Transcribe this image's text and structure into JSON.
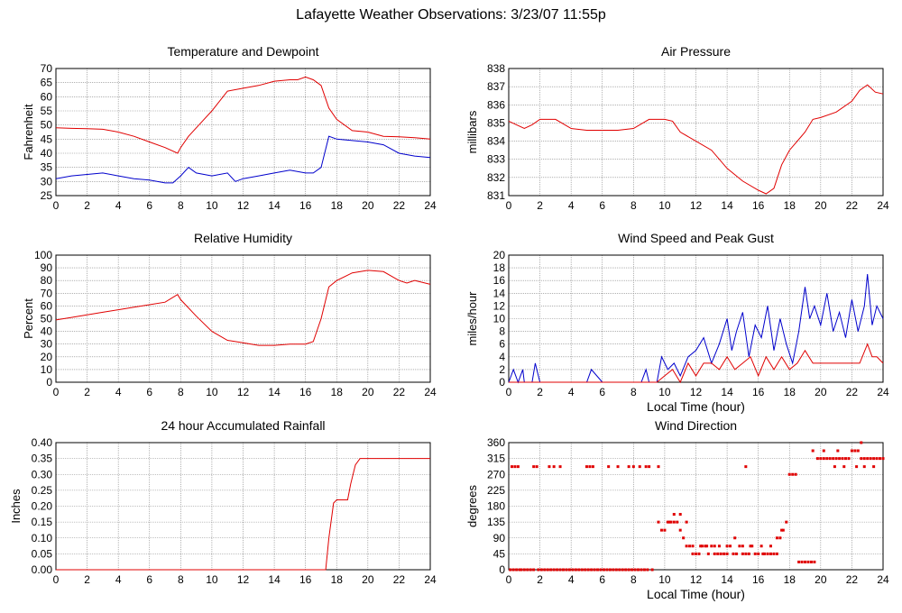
{
  "page": {
    "title": "Lafayette Weather Observations: 3/23/07 11:55p"
  },
  "colors": {
    "red": "#e00000",
    "blue": "#0000cc",
    "grid": "#808080"
  },
  "chart_data": [
    {
      "id": "temp",
      "type": "line",
      "title": "Temperature and Dewpoint",
      "ylabel": "Fahrenheit",
      "xlabel": "",
      "xlim": [
        0,
        24
      ],
      "ylim": [
        25,
        70
      ],
      "xticks": [
        0,
        2,
        4,
        6,
        8,
        10,
        12,
        14,
        16,
        18,
        20,
        22,
        24
      ],
      "yticks": [
        25,
        30,
        35,
        40,
        45,
        50,
        55,
        60,
        65,
        70
      ],
      "grid": true,
      "series": [
        {
          "color": "red",
          "x": [
            0,
            1,
            2,
            3,
            4,
            5,
            6,
            7,
            7.8,
            8,
            8.5,
            9,
            10,
            11,
            12,
            13,
            14,
            15,
            15.5,
            16,
            16.5,
            17,
            17.5,
            18,
            19,
            20,
            21,
            22,
            23,
            24
          ],
          "y": [
            49,
            48.8,
            48.7,
            48.5,
            47.5,
            46,
            44,
            42,
            40,
            42,
            46,
            49,
            55,
            62,
            63,
            64,
            65.5,
            66,
            66,
            67,
            66,
            64,
            56,
            52,
            48,
            47.5,
            46,
            45.8,
            45.5,
            45
          ]
        },
        {
          "color": "blue",
          "x": [
            0,
            1,
            2,
            3,
            4,
            5,
            6,
            7,
            7.5,
            8,
            8.5,
            9,
            10,
            11,
            11.5,
            12,
            13,
            14,
            15,
            16,
            16.5,
            17,
            17.5,
            18,
            19,
            20,
            21,
            22,
            23,
            24
          ],
          "y": [
            31,
            32,
            32.5,
            33,
            32,
            31,
            30.5,
            29.5,
            29.5,
            32,
            35,
            33,
            32,
            33,
            30,
            31,
            32,
            33,
            34,
            33,
            33,
            35,
            46,
            45,
            44.5,
            44,
            43,
            40,
            39,
            38.5
          ]
        }
      ]
    },
    {
      "id": "pressure",
      "type": "line",
      "title": "Air Pressure",
      "ylabel": "millibars",
      "xlabel": "",
      "xlim": [
        0,
        24
      ],
      "ylim": [
        831,
        838
      ],
      "xticks": [
        0,
        2,
        4,
        6,
        8,
        10,
        12,
        14,
        16,
        18,
        20,
        22,
        24
      ],
      "yticks": [
        831,
        832,
        833,
        834,
        835,
        836,
        837,
        838
      ],
      "grid": true,
      "series": [
        {
          "color": "red",
          "x": [
            0,
            0.5,
            1,
            1.5,
            2,
            3,
            4,
            5,
            6,
            7,
            8,
            9,
            10,
            10.5,
            11,
            12,
            13,
            14,
            15,
            16,
            16.5,
            17,
            17.5,
            18,
            19,
            19.5,
            20,
            21,
            22,
            22.5,
            23,
            23.5,
            24
          ],
          "y": [
            835.1,
            834.9,
            834.7,
            834.9,
            835.2,
            835.2,
            834.7,
            834.6,
            834.6,
            834.6,
            834.7,
            835.2,
            835.2,
            835.1,
            834.5,
            834.0,
            833.5,
            832.5,
            831.8,
            831.3,
            831.1,
            831.4,
            832.7,
            833.5,
            834.5,
            835.2,
            835.3,
            835.6,
            836.2,
            836.8,
            837.1,
            836.7,
            836.6
          ]
        }
      ]
    },
    {
      "id": "humidity",
      "type": "line",
      "title": "Relative Humidity",
      "ylabel": "Percent",
      "xlabel": "",
      "xlim": [
        0,
        24
      ],
      "ylim": [
        0,
        100
      ],
      "xticks": [
        0,
        2,
        4,
        6,
        8,
        10,
        12,
        14,
        16,
        18,
        20,
        22,
        24
      ],
      "yticks": [
        0,
        10,
        20,
        30,
        40,
        50,
        60,
        70,
        80,
        90,
        100
      ],
      "grid": true,
      "series": [
        {
          "color": "red",
          "x": [
            0,
            1,
            2,
            3,
            4,
            5,
            6,
            7,
            7.8,
            8,
            9,
            10,
            11,
            12,
            13,
            14,
            15,
            16,
            16.5,
            17,
            17.5,
            18,
            19,
            20,
            21,
            22,
            22.5,
            23,
            24
          ],
          "y": [
            49,
            51,
            53,
            55,
            57,
            59,
            61,
            63,
            69,
            65,
            52,
            40,
            33,
            31,
            29,
            29,
            30,
            30,
            32,
            50,
            75,
            80,
            86,
            88,
            87,
            80,
            78,
            80,
            77
          ]
        }
      ]
    },
    {
      "id": "wind",
      "type": "line",
      "title": "Wind Speed and Peak Gust",
      "ylabel": "miles/hour",
      "xlabel": "Local Time (hour)",
      "xlim": [
        0,
        24
      ],
      "ylim": [
        0,
        20
      ],
      "xticks": [
        0,
        2,
        4,
        6,
        8,
        10,
        12,
        14,
        16,
        18,
        20,
        22,
        24
      ],
      "yticks": [
        0,
        2,
        4,
        6,
        8,
        10,
        12,
        14,
        16,
        18,
        20
      ],
      "grid": true,
      "series": [
        {
          "color": "blue",
          "x": [
            0,
            0.3,
            0.6,
            0.9,
            1,
            1.5,
            1.7,
            2,
            3,
            4,
            5,
            5.3,
            6,
            8.5,
            8.8,
            9,
            9.5,
            9.8,
            10.2,
            10.6,
            11,
            11.5,
            12,
            12.5,
            13,
            13.5,
            14,
            14.3,
            14.6,
            15,
            15.4,
            15.8,
            16.2,
            16.6,
            17,
            17.4,
            17.8,
            18.2,
            18.6,
            19,
            19.3,
            19.6,
            20,
            20.4,
            20.8,
            21.2,
            21.6,
            22,
            22.4,
            22.8,
            23,
            23.3,
            23.6,
            24
          ],
          "y": [
            0,
            2,
            0,
            2,
            0,
            0,
            3,
            0,
            0,
            0,
            0,
            2,
            0,
            0,
            2,
            0,
            0,
            4,
            2,
            3,
            1,
            4,
            5,
            7,
            3,
            6,
            10,
            5,
            8,
            11,
            4,
            9,
            7,
            12,
            5,
            10,
            6,
            3,
            8,
            15,
            10,
            12,
            9,
            14,
            8,
            11,
            7,
            13,
            8,
            12,
            17,
            9,
            12,
            10
          ]
        },
        {
          "color": "red",
          "x": [
            0,
            9.5,
            10,
            10.5,
            11,
            11.5,
            12,
            12.5,
            13,
            13.5,
            14,
            14.5,
            15,
            15.5,
            16,
            16.5,
            17,
            17.5,
            18,
            18.5,
            19,
            19.5,
            20,
            20.5,
            21,
            21.5,
            22,
            22.5,
            23,
            23.3,
            23.6,
            24
          ],
          "y": [
            0,
            0,
            1,
            2,
            0,
            3,
            1,
            3,
            3,
            2,
            4,
            2,
            3,
            4,
            1,
            4,
            2,
            4,
            2,
            3,
            5,
            3,
            3,
            3,
            3,
            3,
            3,
            3,
            6,
            4,
            4,
            3
          ]
        }
      ]
    },
    {
      "id": "rain",
      "type": "line",
      "title": "24 hour Accumulated Rainfall",
      "ylabel": "Inches",
      "xlabel": "",
      "xlim": [
        0,
        24
      ],
      "ylim": [
        0,
        0.4
      ],
      "xticks": [
        0,
        2,
        4,
        6,
        8,
        10,
        12,
        14,
        16,
        18,
        20,
        22,
        24
      ],
      "yticks": [
        0.0,
        0.05,
        0.1,
        0.15,
        0.2,
        0.25,
        0.3,
        0.35,
        0.4
      ],
      "grid": true,
      "series": [
        {
          "color": "red",
          "x": [
            0,
            17.3,
            17.5,
            17.8,
            18,
            18.7,
            18.9,
            19.2,
            19.5,
            20,
            24
          ],
          "y": [
            0,
            0,
            0.1,
            0.21,
            0.22,
            0.22,
            0.27,
            0.33,
            0.35,
            0.35,
            0.35
          ]
        }
      ]
    },
    {
      "id": "direction",
      "type": "scatter",
      "title": "Wind Direction",
      "ylabel": "degrees",
      "xlabel": "Local Time (hour)",
      "xlim": [
        0,
        24
      ],
      "ylim": [
        0,
        360
      ],
      "xticks": [
        0,
        2,
        4,
        6,
        8,
        10,
        12,
        14,
        16,
        18,
        20,
        22,
        24
      ],
      "yticks": [
        0,
        45,
        90,
        135,
        180,
        225,
        270,
        315,
        360
      ],
      "grid": true,
      "series": [
        {
          "color": "red",
          "x": [
            0.1,
            0.3,
            0.5,
            0.7,
            0.8,
            1,
            1.2,
            1.4,
            1.6,
            1.9,
            2.1,
            2.3,
            2.5,
            2.7,
            2.9,
            3.1,
            3.3,
            3.5,
            3.7,
            3.9,
            4.1,
            4.3,
            4.5,
            4.7,
            4.9,
            5.1,
            5.3,
            5.5,
            5.7,
            5.9,
            6.1,
            6.3,
            6.5,
            6.7,
            6.9,
            7.1,
            7.3,
            7.5,
            7.7,
            7.9,
            8.1,
            8.3,
            8.5,
            8.7,
            8.9,
            9.2,
            0.2,
            0.4,
            0.6,
            1.6,
            1.8,
            2.6,
            2.9,
            3.3,
            5.0,
            5.2,
            5.4,
            6.4,
            7.0,
            7.7,
            8.0,
            8.4,
            8.8,
            9.0,
            9.6,
            9.6,
            9.8,
            10.0,
            10.2,
            10.4,
            10.6,
            10.8,
            11.0,
            11.2,
            11.4,
            11.6,
            11.8,
            12.0,
            12.2,
            12.4,
            12.6,
            12.8,
            13.0,
            13.2,
            13.4,
            13.6,
            13.8,
            14.0,
            14.2,
            14.4,
            14.6,
            14.8,
            15.0,
            15.2,
            15.4,
            15.6,
            15.8,
            16.0,
            16.2,
            16.4,
            16.6,
            16.8,
            17.0,
            17.2,
            17.4,
            17.6,
            17.8,
            10.3,
            10.6,
            11.0,
            11.4,
            11.8,
            12.3,
            12.7,
            13.2,
            13.5,
            14.0,
            14.5,
            15.0,
            15.5,
            16.3,
            16.8,
            17.2,
            17.5,
            15.2,
            18.0,
            18.2,
            18.4,
            18.6,
            18.8,
            19.0,
            19.2,
            19.4,
            19.6,
            19.8,
            20.0,
            20.2,
            20.4,
            20.6,
            20.8,
            21.0,
            21.2,
            21.4,
            21.6,
            21.8,
            22.0,
            22.2,
            22.4,
            22.6,
            22.8,
            23.0,
            23.2,
            23.4,
            23.6,
            23.8,
            24.0,
            19.5,
            20.2,
            20.9,
            21.5,
            22.3,
            22.8,
            23.4,
            21.1,
            22.6
          ],
          "y": [
            0,
            0,
            0,
            0,
            0,
            0,
            0,
            0,
            0,
            0,
            0,
            0,
            0,
            0,
            0,
            0,
            0,
            0,
            0,
            0,
            0,
            0,
            0,
            0,
            0,
            0,
            0,
            0,
            0,
            0,
            0,
            0,
            0,
            0,
            0,
            0,
            0,
            0,
            0,
            0,
            0,
            0,
            0,
            0,
            0,
            0,
            292,
            292,
            292,
            292,
            292,
            292,
            292,
            292,
            292,
            292,
            292,
            292,
            292,
            292,
            292,
            292,
            292,
            292,
            292,
            135,
            112,
            112,
            135,
            135,
            135,
            135,
            112,
            90,
            67,
            67,
            45,
            45,
            45,
            67,
            67,
            45,
            67,
            45,
            45,
            45,
            45,
            45,
            67,
            45,
            45,
            67,
            45,
            45,
            45,
            67,
            45,
            45,
            67,
            45,
            45,
            67,
            45,
            45,
            90,
            112,
            135,
            135,
            157,
            157,
            135,
            67,
            67,
            67,
            67,
            67,
            67,
            90,
            67,
            67,
            45,
            45,
            90,
            112,
            292,
            270,
            270,
            270,
            22,
            22,
            22,
            22,
            22,
            22,
            315,
            315,
            315,
            315,
            315,
            315,
            315,
            315,
            315,
            315,
            315,
            337,
            337,
            337,
            315,
            315,
            315,
            315,
            315,
            315,
            315,
            315,
            337,
            337,
            292,
            292,
            292,
            292,
            292,
            337,
            360
          ]
        }
      ]
    }
  ]
}
